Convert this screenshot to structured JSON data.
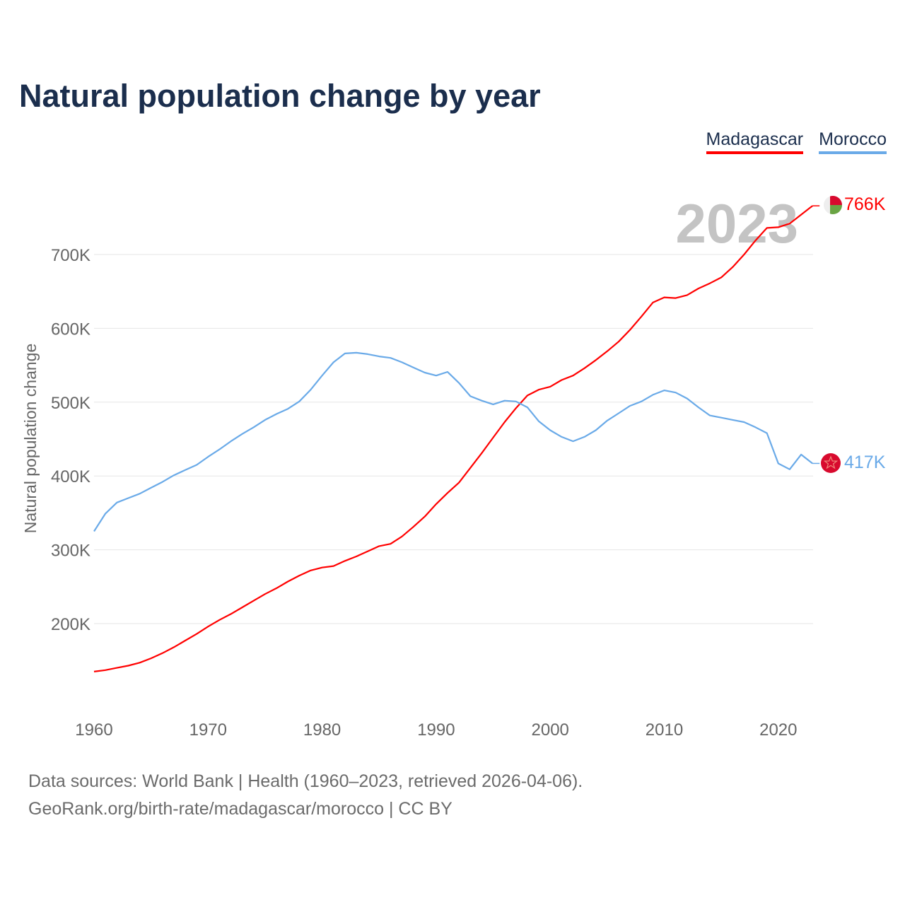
{
  "title": "Natural population change by year",
  "footer": {
    "line1": "Data sources: World Bank | Health (1960–2023, retrieved 2026-04-06).",
    "line2": "GeoRank.org/birth-rate/madagascar/morocco | CC BY"
  },
  "chart_data": {
    "type": "line",
    "title": "Natural population change by year",
    "xlabel": "",
    "ylabel": "Natural population change",
    "xlim": [
      1960,
      2023
    ],
    "ylim": [
      100000,
      780000
    ],
    "x_ticks": [
      1960,
      1970,
      1980,
      1990,
      2000,
      2010,
      2020
    ],
    "x_tick_labels": [
      "1960",
      "1970",
      "1980",
      "1990",
      "2000",
      "2010",
      "2020"
    ],
    "y_ticks": [
      200000,
      300000,
      400000,
      500000,
      600000,
      700000
    ],
    "y_tick_labels": [
      "200K",
      "300K",
      "400K",
      "500K",
      "600K",
      "700K"
    ],
    "grid": true,
    "legend_position": "top-right",
    "year_label": "2023",
    "x": [
      1960,
      1961,
      1962,
      1963,
      1964,
      1965,
      1966,
      1967,
      1968,
      1969,
      1970,
      1971,
      1972,
      1973,
      1974,
      1975,
      1976,
      1977,
      1978,
      1979,
      1980,
      1981,
      1982,
      1983,
      1984,
      1985,
      1986,
      1987,
      1988,
      1989,
      1990,
      1991,
      1992,
      1993,
      1994,
      1995,
      1996,
      1997,
      1998,
      1999,
      2000,
      2001,
      2002,
      2003,
      2004,
      2005,
      2006,
      2007,
      2008,
      2009,
      2010,
      2011,
      2012,
      2013,
      2014,
      2015,
      2016,
      2017,
      2018,
      2019,
      2020,
      2021,
      2022,
      2023
    ],
    "series": [
      {
        "name": "Madagascar",
        "color": "#ff0000",
        "end_label": "766K",
        "flag": "madagascar-flag",
        "values": [
          135000,
          137000,
          140000,
          143000,
          147000,
          153000,
          160000,
          168000,
          177000,
          186000,
          196000,
          205000,
          213000,
          222000,
          231000,
          240000,
          248000,
          257000,
          265000,
          272000,
          276000,
          278000,
          285000,
          291000,
          298000,
          305000,
          308000,
          318000,
          331000,
          345000,
          362000,
          377000,
          391000,
          411000,
          431000,
          452000,
          473000,
          492000,
          509000,
          517000,
          521000,
          530000,
          536000,
          546000,
          557000,
          569000,
          582000,
          598000,
          616000,
          635000,
          642000,
          641000,
          645000,
          654000,
          661000,
          669000,
          683000,
          700000,
          719000,
          736000,
          737000,
          742000,
          754000,
          766000
        ]
      },
      {
        "name": "Morocco",
        "color": "#6aaae8",
        "end_label": "417K",
        "flag": "morocco-flag",
        "values": [
          325000,
          349000,
          364000,
          370000,
          376000,
          384000,
          392000,
          401000,
          408000,
          415000,
          426000,
          436000,
          447000,
          457000,
          466000,
          476000,
          484000,
          491000,
          501000,
          517000,
          536000,
          554000,
          566000,
          567000,
          565000,
          562000,
          560000,
          554000,
          547000,
          540000,
          536000,
          541000,
          526000,
          508000,
          502000,
          497000,
          502000,
          501000,
          493000,
          474000,
          462000,
          453000,
          447000,
          453000,
          462000,
          475000,
          485000,
          495000,
          501000,
          510000,
          516000,
          513000,
          505000,
          493000,
          482000,
          479000,
          476000,
          473000,
          466000,
          458000,
          417000,
          409000,
          429000,
          417000
        ]
      }
    ]
  }
}
